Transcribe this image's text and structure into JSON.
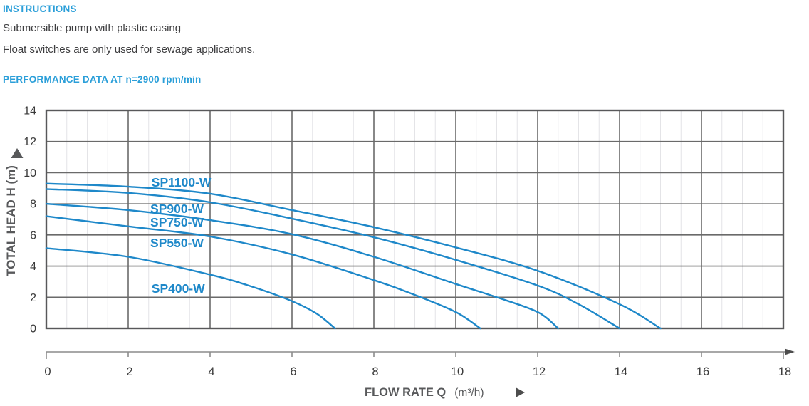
{
  "header": {
    "instructions_title": "INSTRUCTIONS",
    "instruction_lines": [
      "Submersible pump with plastic casing",
      "Float switches are only used for sewage applications."
    ],
    "performance_title": "PERFORMANCE DATA AT n=2900 rpm/min"
  },
  "colors": {
    "header_blue": "#2b9fd9",
    "curve_blue": "#1e88c9",
    "body_text": "#3e3e40",
    "grid_major": "#6a6a6a",
    "grid_minor": "#e4e4e7",
    "plot_border": "#58585a",
    "axis_text": "#3a3a3a",
    "axis_title": "#58595b",
    "scale_bar": "#8c8c8c"
  },
  "chart_data": {
    "type": "line",
    "title": "",
    "xlabel": "FLOW RATE Q",
    "xlabel_unit": "(m³/h)",
    "ylabel": "TOTAL HEAD H (m)",
    "xlim": [
      0,
      18
    ],
    "ylim": [
      0,
      14
    ],
    "x_ticks": [
      0,
      2,
      4,
      6,
      8,
      10,
      12,
      14,
      16,
      18
    ],
    "y_ticks": [
      0,
      2,
      4,
      6,
      8,
      10,
      12,
      14
    ],
    "x_minor_step": 0.5,
    "grid": "major dark both axes, minor light vertical only",
    "legend_position": "labels on curves",
    "series": [
      {
        "name": "SP1100-W",
        "points": [
          [
            0,
            9.3
          ],
          [
            2,
            9.1
          ],
          [
            4,
            8.65
          ],
          [
            6,
            7.6
          ],
          [
            8,
            6.5
          ],
          [
            10,
            5.2
          ],
          [
            12,
            3.7
          ],
          [
            14,
            1.55
          ],
          [
            15,
            0
          ]
        ],
        "label_at": {
          "q": 2.57,
          "h": 9.1
        }
      },
      {
        "name": "SP900-W",
        "points": [
          [
            0,
            8.95
          ],
          [
            2,
            8.7
          ],
          [
            4,
            8.1
          ],
          [
            6,
            7.05
          ],
          [
            8,
            5.85
          ],
          [
            10,
            4.4
          ],
          [
            12,
            2.75
          ],
          [
            13,
            1.55
          ],
          [
            14,
            0
          ]
        ],
        "label_at": {
          "q": 2.54,
          "h": 7.41
        }
      },
      {
        "name": "SP750-W",
        "points": [
          [
            0,
            8.0
          ],
          [
            2,
            7.6
          ],
          [
            4,
            6.95
          ],
          [
            6,
            6.05
          ],
          [
            8,
            4.6
          ],
          [
            10,
            2.85
          ],
          [
            11,
            2.0
          ],
          [
            12,
            1.05
          ],
          [
            12.5,
            0
          ]
        ],
        "label_at": {
          "q": 2.54,
          "h": 6.54
        }
      },
      {
        "name": "SP550-W",
        "points": [
          [
            0,
            7.2
          ],
          [
            2,
            6.55
          ],
          [
            4,
            5.9
          ],
          [
            6,
            4.75
          ],
          [
            8,
            3.1
          ],
          [
            9,
            2.15
          ],
          [
            10,
            1.05
          ],
          [
            10.6,
            0
          ]
        ],
        "label_at": {
          "q": 2.54,
          "h": 5.22
        }
      },
      {
        "name": "SP400-W",
        "points": [
          [
            0,
            5.15
          ],
          [
            2,
            4.6
          ],
          [
            4,
            3.45
          ],
          [
            5,
            2.7
          ],
          [
            6,
            1.75
          ],
          [
            6.6,
            0.95
          ],
          [
            7.05,
            0
          ]
        ],
        "label_at": {
          "q": 2.57,
          "h": 2.29
        }
      }
    ]
  }
}
